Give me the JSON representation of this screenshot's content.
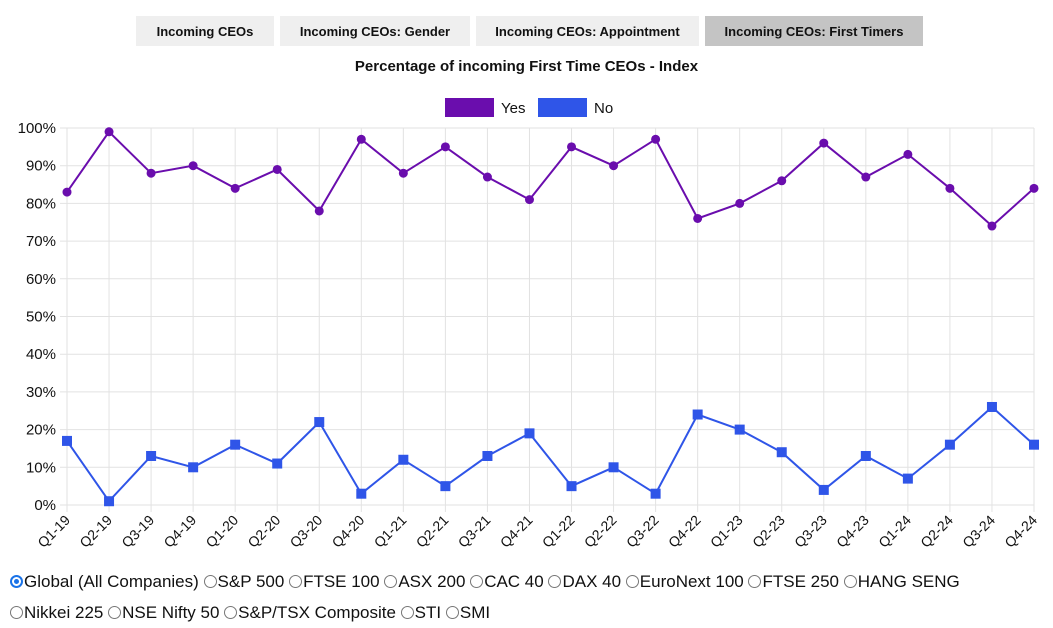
{
  "tabs": [
    {
      "label": "Incoming CEOs",
      "active": false
    },
    {
      "label": "Incoming CEOs: Gender",
      "active": false
    },
    {
      "label": "Incoming CEOs: Appointment",
      "active": false
    },
    {
      "label": "Incoming CEOs: First Timers",
      "active": true
    }
  ],
  "chart_data": {
    "type": "line",
    "title": "Percentage of incoming First Time CEOs - Index",
    "xlabel": "",
    "ylabel": "",
    "ylim": [
      0,
      100
    ],
    "y_tick_labels": [
      "0%",
      "10%",
      "20%",
      "30%",
      "40%",
      "50%",
      "60%",
      "70%",
      "80%",
      "90%",
      "100%"
    ],
    "grid": true,
    "legend_position": "top-center",
    "categories": [
      "Q1-19",
      "Q2-19",
      "Q3-19",
      "Q4-19",
      "Q1-20",
      "Q2-20",
      "Q3-20",
      "Q4-20",
      "Q1-21",
      "Q2-21",
      "Q3-21",
      "Q4-21",
      "Q1-22",
      "Q2-22",
      "Q3-22",
      "Q4-22",
      "Q1-23",
      "Q2-23",
      "Q3-23",
      "Q4-23",
      "Q1-24",
      "Q2-24",
      "Q3-24",
      "Q4-24"
    ],
    "series": [
      {
        "name": "Yes",
        "color": "#6a0dad",
        "marker": "circle",
        "values": [
          83,
          99,
          88,
          90,
          84,
          89,
          78,
          97,
          88,
          95,
          87,
          81,
          95,
          90,
          97,
          76,
          80,
          86,
          96,
          87,
          93,
          84,
          74,
          84
        ]
      },
      {
        "name": "No",
        "color": "#2f55e8",
        "marker": "square",
        "values": [
          17,
          1,
          13,
          10,
          16,
          11,
          22,
          3,
          12,
          5,
          13,
          19,
          5,
          10,
          3,
          24,
          20,
          14,
          4,
          13,
          7,
          16,
          26,
          16
        ]
      }
    ]
  },
  "radio_options": [
    {
      "label": "Global (All Companies)",
      "checked": true
    },
    {
      "label": "S&P 500",
      "checked": false
    },
    {
      "label": "FTSE 100",
      "checked": false
    },
    {
      "label": "ASX 200",
      "checked": false
    },
    {
      "label": "CAC 40",
      "checked": false
    },
    {
      "label": "DAX 40",
      "checked": false
    },
    {
      "label": "EuroNext 100",
      "checked": false
    },
    {
      "label": "FTSE 250",
      "checked": false
    },
    {
      "label": "HANG SENG",
      "checked": false
    },
    {
      "label": "Nikkei 225",
      "checked": false
    },
    {
      "label": "NSE Nifty 50",
      "checked": false
    },
    {
      "label": "S&P/TSX Composite",
      "checked": false
    },
    {
      "label": "STI",
      "checked": false
    },
    {
      "label": "SMI",
      "checked": false
    }
  ]
}
